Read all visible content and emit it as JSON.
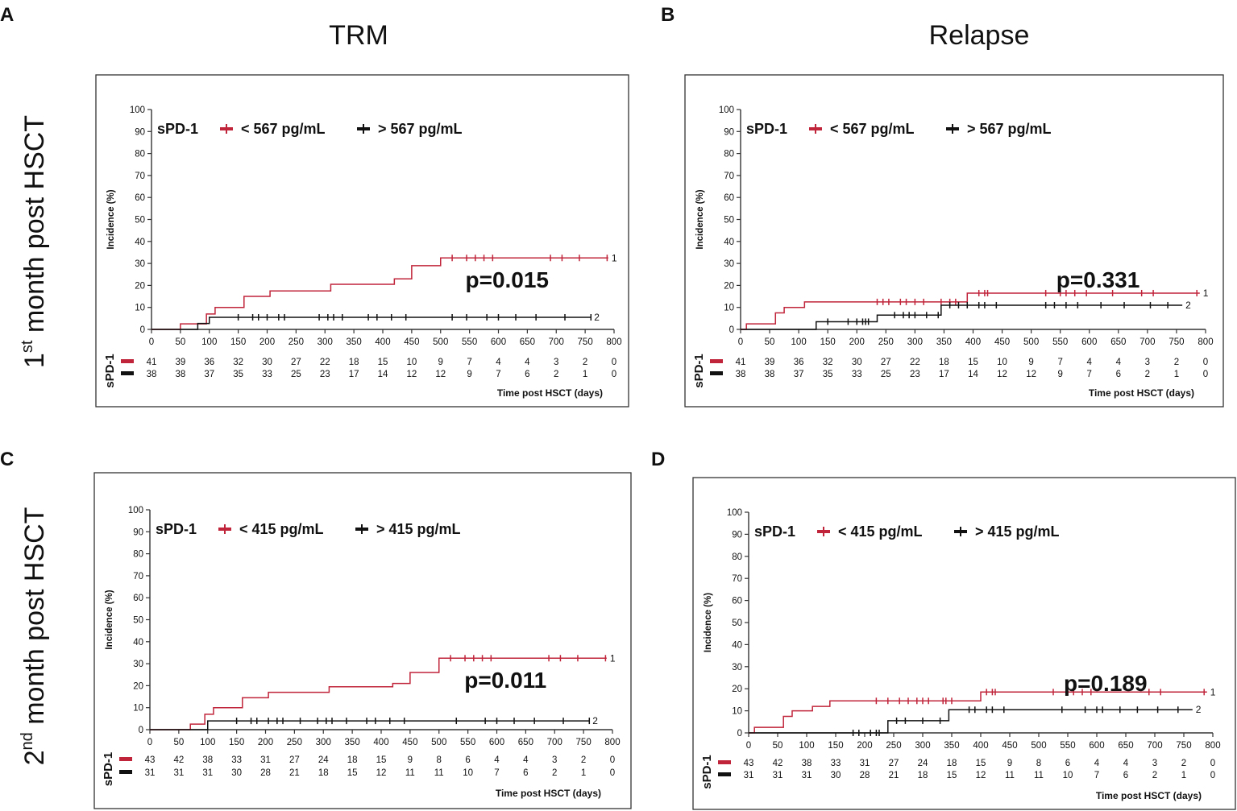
{
  "figure": {
    "col_titles": [
      "TRM",
      "Relapse"
    ],
    "row_titles": [
      {
        "sup": "st",
        "lead": "1",
        "rest": " month post HSCT"
      },
      {
        "sup": "nd",
        "lead": "2",
        "rest": " month post HSCT"
      }
    ],
    "panel_letters": [
      "A",
      "B",
      "C",
      "D"
    ]
  },
  "colors": {
    "low": "#c0243a",
    "high": "#111111",
    "frame": "#333333",
    "text": "#111111"
  },
  "chart_data": [
    {
      "type": "line",
      "step": true,
      "panel": "A",
      "title": "TRM",
      "ylabel": "Incidence (%)",
      "xlabel": "Time post HSCT (days)",
      "xlim": [
        0,
        800
      ],
      "ylim": [
        0,
        100
      ],
      "xticks": [
        "0",
        "50",
        "100",
        "150",
        "200",
        "250",
        "300",
        "350",
        "400",
        "450",
        "500",
        "550",
        "600",
        "650",
        "700",
        "750",
        "800"
      ],
      "yticks": [
        "0",
        "10",
        "20",
        "30",
        "40",
        "50",
        "60",
        "70",
        "80",
        "90",
        "100"
      ],
      "legend_title": "sPD-1",
      "legend_labels": [
        "< 567 pg/mL",
        "> 567 pg/mL"
      ],
      "p_value": "p=0.015",
      "series": [
        {
          "name": "< 567 pg/mL",
          "end_label": "1",
          "steps": [
            [
              0,
              0
            ],
            [
              50,
              2.5
            ],
            [
              95,
              7
            ],
            [
              110,
              10
            ],
            [
              160,
              15
            ],
            [
              205,
              17.5
            ],
            [
              310,
              20.5
            ],
            [
              420,
              23
            ],
            [
              450,
              29
            ],
            [
              500,
              32.5
            ],
            [
              790,
              32.5
            ]
          ],
          "censor": [
            520,
            545,
            560,
            575,
            590,
            690,
            710,
            740,
            788
          ]
        },
        {
          "name": "> 567 pg/mL",
          "end_label": "2",
          "steps": [
            [
              0,
              0
            ],
            [
              80,
              2.7
            ],
            [
              100,
              5.5
            ],
            [
              760,
              5.5
            ]
          ],
          "censor": [
            150,
            175,
            185,
            200,
            220,
            230,
            290,
            305,
            315,
            330,
            375,
            390,
            415,
            440,
            520,
            545,
            580,
            600,
            630,
            665,
            715,
            760
          ]
        }
      ],
      "risk_table": {
        "label": "sPD-1",
        "rows": [
          [
            "41",
            "39",
            "36",
            "32",
            "30",
            "27",
            "22",
            "18",
            "15",
            "10",
            "9",
            "7",
            "4",
            "4",
            "3",
            "2",
            "0"
          ],
          [
            "38",
            "38",
            "37",
            "35",
            "33",
            "25",
            "23",
            "17",
            "14",
            "12",
            "12",
            "9",
            "7",
            "6",
            "2",
            "1",
            "0"
          ]
        ]
      }
    },
    {
      "type": "line",
      "step": true,
      "panel": "B",
      "title": "Relapse",
      "ylabel": "Incidence (%)",
      "xlabel": "Time post HSCT (days)",
      "xlim": [
        0,
        800
      ],
      "ylim": [
        0,
        100
      ],
      "xticks": [
        "0",
        "50",
        "100",
        "150",
        "200",
        "250",
        "300",
        "350",
        "400",
        "450",
        "500",
        "550",
        "600",
        "650",
        "700",
        "750",
        "800"
      ],
      "yticks": [
        "0",
        "10",
        "20",
        "30",
        "40",
        "50",
        "60",
        "70",
        "80",
        "90",
        "100"
      ],
      "legend_title": "sPD-1",
      "legend_labels": [
        "< 567 pg/mL",
        "> 567 pg/mL"
      ],
      "p_value": "p=0.331",
      "series": [
        {
          "name": "< 567 pg/mL",
          "end_label": "1",
          "steps": [
            [
              0,
              0
            ],
            [
              10,
              2.5
            ],
            [
              60,
              7.5
            ],
            [
              75,
              10
            ],
            [
              110,
              12.5
            ],
            [
              390,
              16.5
            ],
            [
              790,
              16.5
            ]
          ],
          "censor": [
            235,
            245,
            255,
            275,
            285,
            300,
            315,
            345,
            360,
            370,
            410,
            420,
            425,
            525,
            550,
            560,
            575,
            595,
            640,
            690,
            710,
            785
          ]
        },
        {
          "name": "> 567 pg/mL",
          "end_label": "2",
          "steps": [
            [
              0,
              0
            ],
            [
              130,
              3.5
            ],
            [
              235,
              6.5
            ],
            [
              345,
              11
            ],
            [
              760,
              11
            ]
          ],
          "censor": [
            150,
            185,
            200,
            210,
            215,
            220,
            265,
            280,
            290,
            300,
            320,
            340,
            360,
            375,
            390,
            410,
            420,
            440,
            525,
            540,
            560,
            580,
            620,
            660,
            705,
            735
          ]
        }
      ],
      "risk_table": {
        "label": "sPD-1",
        "rows": [
          [
            "41",
            "39",
            "36",
            "32",
            "30",
            "27",
            "22",
            "18",
            "15",
            "10",
            "9",
            "7",
            "4",
            "4",
            "3",
            "2",
            "0"
          ],
          [
            "38",
            "38",
            "37",
            "35",
            "33",
            "25",
            "23",
            "17",
            "14",
            "12",
            "12",
            "9",
            "7",
            "6",
            "2",
            "1",
            "0"
          ]
        ]
      }
    },
    {
      "type": "line",
      "step": true,
      "panel": "C",
      "title": "TRM",
      "ylabel": "Incidence (%)",
      "xlabel": "Time post HSCT (days)",
      "xlim": [
        0,
        800
      ],
      "ylim": [
        0,
        100
      ],
      "xticks": [
        "0",
        "50",
        "100",
        "150",
        "200",
        "250",
        "300",
        "350",
        "400",
        "450",
        "500",
        "550",
        "600",
        "650",
        "700",
        "750",
        "800"
      ],
      "yticks": [
        "0",
        "10",
        "20",
        "30",
        "40",
        "50",
        "60",
        "70",
        "80",
        "90",
        "100"
      ],
      "legend_title": "sPD-1",
      "legend_labels": [
        "< 415 pg/mL",
        "> 415 pg/mL"
      ],
      "p_value": "p=0.011",
      "series": [
        {
          "name": "< 415 pg/mL",
          "end_label": "1",
          "steps": [
            [
              0,
              0
            ],
            [
              70,
              2.5
            ],
            [
              95,
              7
            ],
            [
              110,
              10
            ],
            [
              160,
              14.5
            ],
            [
              205,
              17
            ],
            [
              310,
              19.5
            ],
            [
              420,
              21
            ],
            [
              450,
              26
            ],
            [
              500,
              32.5
            ],
            [
              790,
              32.5
            ]
          ],
          "censor": [
            520,
            545,
            560,
            575,
            590,
            690,
            710,
            740,
            788
          ]
        },
        {
          "name": "> 415 pg/mL",
          "end_label": "2",
          "steps": [
            [
              0,
              0
            ],
            [
              100,
              4
            ],
            [
              760,
              4
            ]
          ],
          "censor": [
            150,
            175,
            185,
            205,
            220,
            230,
            260,
            290,
            305,
            315,
            340,
            375,
            390,
            415,
            440,
            530,
            580,
            600,
            630,
            665,
            715,
            760
          ]
        }
      ],
      "risk_table": {
        "label": "sPD-1",
        "rows": [
          [
            "43",
            "42",
            "38",
            "33",
            "31",
            "27",
            "24",
            "18",
            "15",
            "9",
            "8",
            "6",
            "4",
            "4",
            "3",
            "2",
            "0"
          ],
          [
            "31",
            "31",
            "31",
            "30",
            "28",
            "21",
            "18",
            "15",
            "12",
            "11",
            "11",
            "10",
            "7",
            "6",
            "2",
            "1",
            "0"
          ]
        ]
      }
    },
    {
      "type": "line",
      "step": true,
      "panel": "D",
      "title": "Relapse",
      "ylabel": "Incidence (%)",
      "xlabel": "Time post HSCT (days)",
      "xlim": [
        0,
        800
      ],
      "ylim": [
        0,
        100
      ],
      "xticks": [
        "0",
        "50",
        "100",
        "150",
        "200",
        "250",
        "300",
        "350",
        "400",
        "450",
        "500",
        "550",
        "600",
        "650",
        "700",
        "750",
        "800"
      ],
      "yticks": [
        "0",
        "10",
        "20",
        "30",
        "40",
        "50",
        "60",
        "70",
        "80",
        "90",
        "100"
      ],
      "legend_title": "sPD-1",
      "legend_labels": [
        "< 415 pg/mL",
        "> 415 pg/mL"
      ],
      "p_value": "p=0.189",
      "series": [
        {
          "name": "< 415 pg/mL",
          "end_label": "1",
          "steps": [
            [
              0,
              0
            ],
            [
              10,
              2.5
            ],
            [
              60,
              7.5
            ],
            [
              75,
              10
            ],
            [
              110,
              12
            ],
            [
              140,
              14.5
            ],
            [
              400,
              18.5
            ],
            [
              790,
              18.5
            ]
          ],
          "censor": [
            220,
            240,
            260,
            275,
            290,
            300,
            310,
            335,
            340,
            350,
            410,
            420,
            425,
            525,
            550,
            560,
            575,
            590,
            690,
            710,
            785
          ]
        },
        {
          "name": "> 415 pg/mL",
          "end_label": "2",
          "steps": [
            [
              0,
              0
            ],
            [
              240,
              5.5
            ],
            [
              345,
              10.5
            ],
            [
              765,
              10.5
            ]
          ],
          "censor": [
            180,
            190,
            210,
            220,
            225,
            255,
            270,
            300,
            330,
            380,
            390,
            410,
            420,
            440,
            540,
            580,
            600,
            610,
            640,
            670,
            705,
            740
          ]
        }
      ],
      "risk_table": {
        "label": "sPD-1",
        "rows": [
          [
            "43",
            "42",
            "38",
            "33",
            "31",
            "27",
            "24",
            "18",
            "15",
            "9",
            "8",
            "6",
            "4",
            "4",
            "3",
            "2",
            "0"
          ],
          [
            "31",
            "31",
            "31",
            "30",
            "28",
            "21",
            "18",
            "15",
            "12",
            "11",
            "11",
            "10",
            "7",
            "6",
            "2",
            "1",
            "0"
          ]
        ]
      }
    }
  ]
}
